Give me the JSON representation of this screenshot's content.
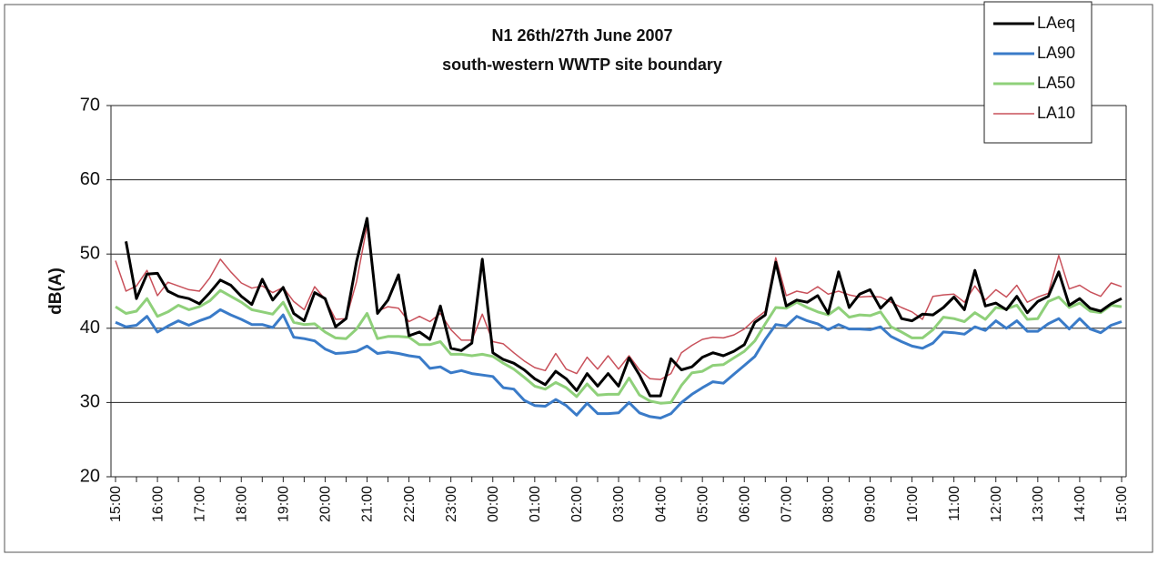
{
  "chart_data": {
    "type": "line",
    "title": "N1 26th/27th June 2007",
    "subtitle": "south-western WWTP site boundary",
    "ylabel": "dB(A)",
    "ylim": [
      20,
      70
    ],
    "yticks": [
      20,
      30,
      40,
      50,
      60,
      70
    ],
    "grid": true,
    "legend": "top-right",
    "categories": [
      "15:00",
      null,
      null,
      null,
      "16:00",
      null,
      null,
      null,
      "17:00",
      null,
      null,
      null,
      "18:00",
      null,
      null,
      null,
      "19:00",
      null,
      null,
      null,
      "20:00",
      null,
      null,
      null,
      "21:00",
      null,
      null,
      null,
      "22:00",
      null,
      null,
      null,
      "23:00",
      null,
      null,
      null,
      "00:00",
      null,
      null,
      null,
      "01:00",
      null,
      null,
      null,
      "02:00",
      null,
      null,
      null,
      "03:00",
      null,
      null,
      null,
      "04:00",
      null,
      null,
      null,
      "05:00",
      null,
      null,
      null,
      "06:00",
      null,
      null,
      null,
      "07:00",
      null,
      null,
      null,
      "08:00",
      null,
      null,
      null,
      "09:00",
      null,
      null,
      null,
      "10:00",
      null,
      null,
      null,
      "11:00",
      null,
      null,
      null,
      "12:00",
      null,
      null,
      null,
      "13:00",
      null,
      null,
      null,
      "14:00",
      null,
      null,
      null,
      "15:00"
    ],
    "series": [
      {
        "name": "LAeq",
        "color": "#000000",
        "width": 3,
        "values": [
          null,
          51.7,
          44,
          47.3,
          47.4,
          45,
          44.3,
          44,
          43.3,
          44.8,
          46.5,
          45.8,
          44.3,
          43.2,
          46.6,
          43.8,
          45.5,
          42,
          41,
          44.8,
          44,
          40.2,
          41.3,
          49,
          54.8,
          42,
          43.8,
          47.2,
          39,
          39.5,
          38.5,
          43,
          37.3,
          37,
          38,
          49.3,
          36.7,
          35.8,
          35.3,
          34.4,
          33.2,
          32.4,
          34.2,
          33.2,
          31.6,
          33.9,
          32.2,
          33.9,
          32.2,
          36,
          33.7,
          30.9,
          30.9,
          35.9,
          34.4,
          34.8,
          36.1,
          36.7,
          36.3,
          36.9,
          37.8,
          40.8,
          41.8,
          48.9,
          43,
          43.8,
          43.5,
          44.4,
          42,
          47.6,
          42.8,
          44.6,
          45.2,
          42.7,
          44.1,
          41.3,
          41,
          41.9,
          41.8,
          42.8,
          44.2,
          42.5,
          47.8,
          43,
          43.4,
          42.5,
          44.3,
          42.1,
          43.6,
          44.3,
          47.6,
          43.1,
          44,
          42.7,
          42.3,
          43.3,
          44
        ]
      },
      {
        "name": "LA90",
        "color": "#3a7bc8",
        "width": 3,
        "values": [
          40.8,
          40.2,
          40.4,
          41.6,
          39.5,
          40.3,
          41,
          40.4,
          41,
          41.5,
          42.5,
          41.8,
          41.2,
          40.5,
          40.5,
          40.1,
          41.8,
          38.8,
          38.6,
          38.3,
          37.2,
          36.6,
          36.7,
          36.9,
          37.6,
          36.6,
          36.8,
          36.6,
          36.3,
          36.1,
          34.6,
          34.8,
          34,
          34.3,
          33.9,
          33.7,
          33.5,
          32,
          31.8,
          30.3,
          29.6,
          29.5,
          30.4,
          29.6,
          28.3,
          29.9,
          28.5,
          28.5,
          28.6,
          30,
          28.6,
          28.1,
          27.9,
          28.5,
          30,
          31.1,
          32,
          32.8,
          32.6,
          33.8,
          35,
          36.2,
          38.5,
          40.5,
          40.3,
          41.6,
          41,
          40.6,
          39.8,
          40.5,
          39.9,
          39.9,
          39.8,
          40.2,
          38.9,
          38.2,
          37.6,
          37.3,
          38,
          39.5,
          39.4,
          39.2,
          40.2,
          39.7,
          41,
          40,
          41,
          39.6,
          39.6,
          40.6,
          41.3,
          39.9,
          41.3,
          39.9,
          39.4,
          40.4,
          40.9
        ]
      },
      {
        "name": "LA50",
        "color": "#8fd07a",
        "width": 3,
        "values": [
          42.9,
          42,
          42.3,
          44,
          41.6,
          42.2,
          43.1,
          42.5,
          42.9,
          43.7,
          45.1,
          44.3,
          43.5,
          42.5,
          42.2,
          41.9,
          43.5,
          40.8,
          40.5,
          40.6,
          39.5,
          38.7,
          38.6,
          39.9,
          42,
          38.6,
          38.9,
          38.9,
          38.8,
          37.8,
          37.8,
          38.2,
          36.5,
          36.5,
          36.3,
          36.5,
          36.2,
          35.3,
          34.5,
          33.4,
          32.2,
          31.8,
          32.7,
          32,
          30.8,
          32.5,
          31,
          31.1,
          31.1,
          33.3,
          31,
          30.2,
          29.9,
          30,
          32.3,
          34,
          34.2,
          35,
          35.1,
          36,
          36.9,
          38.3,
          40.6,
          42.8,
          42.7,
          43.5,
          42.8,
          42.2,
          41.8,
          42.8,
          41.5,
          41.8,
          41.7,
          42.2,
          40.2,
          39.5,
          38.7,
          38.7,
          39.8,
          41.5,
          41.3,
          40.9,
          42.1,
          41.2,
          42.8,
          42.6,
          43.1,
          41.2,
          41.3,
          43.6,
          44.2,
          42.8,
          43.4,
          42.3,
          42.1,
          43.1,
          42.9
        ]
      },
      {
        "name": "LA10",
        "color": "#c8505a",
        "width": 1.5,
        "values": [
          49.1,
          45,
          45.7,
          47.8,
          44.4,
          46.2,
          45.7,
          45.2,
          45,
          46.8,
          49.3,
          47.6,
          46.1,
          45.4,
          45.7,
          44.8,
          45.5,
          43.6,
          42.5,
          45.6,
          43.9,
          41.2,
          41.3,
          46.3,
          53.8,
          42.3,
          42.9,
          42.7,
          40.9,
          41.6,
          40.9,
          42,
          39.8,
          38.4,
          38.4,
          41.9,
          38.2,
          37.9,
          36.7,
          35.6,
          34.7,
          34.3,
          36.6,
          34.5,
          33.9,
          36.1,
          34.5,
          36.3,
          34.5,
          36.3,
          34.4,
          33.2,
          33.1,
          33.9,
          36.7,
          37.7,
          38.5,
          38.8,
          38.7,
          39.1,
          39.9,
          41.2,
          42.3,
          49.5,
          44.4,
          45,
          44.7,
          45.6,
          44.6,
          45,
          44.5,
          44.2,
          44.3,
          44.2,
          43.5,
          42.8,
          42.2,
          41.2,
          44.3,
          44.5,
          44.6,
          43.5,
          45.7,
          43.8,
          45.2,
          44.2,
          45.8,
          43.5,
          44.2,
          44.7,
          49.8,
          45.3,
          45.8,
          44.9,
          44.3,
          46.1,
          45.6
        ]
      }
    ]
  }
}
